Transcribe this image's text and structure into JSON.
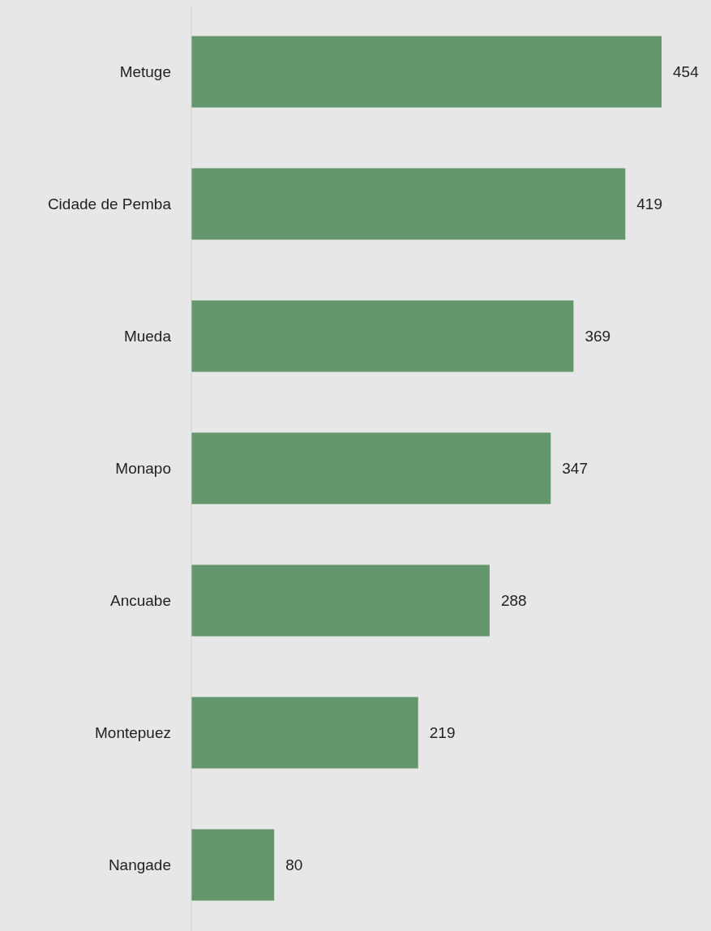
{
  "chart_data": {
    "type": "bar",
    "orientation": "horizontal",
    "categories": [
      "Metuge",
      "Cidade de Pemba",
      "Mueda",
      "Monapo",
      "Ancuabe",
      "Montepuez",
      "Nangade"
    ],
    "values": [
      454,
      419,
      369,
      347,
      288,
      219,
      80
    ],
    "color": "#64986c",
    "data_labels": true
  }
}
